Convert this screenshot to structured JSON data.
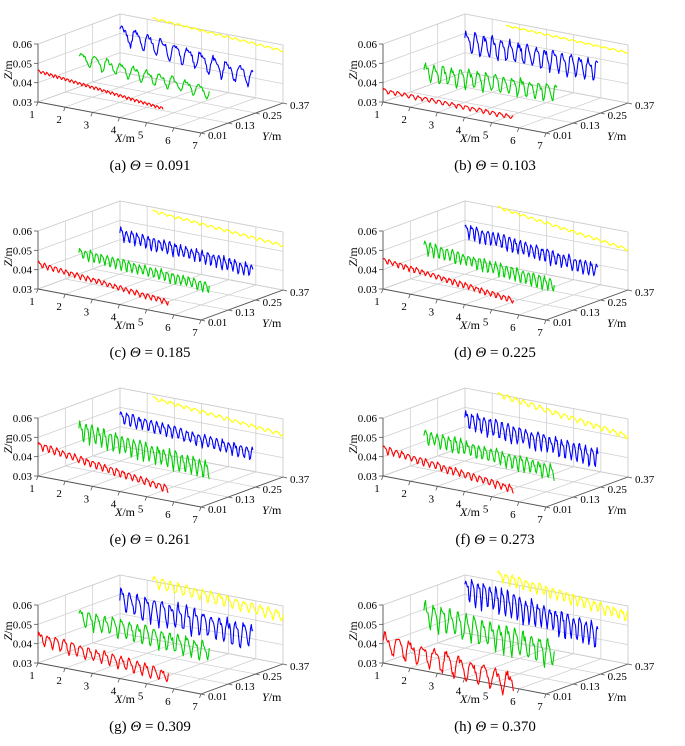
{
  "figure": {
    "series_colors": {
      "y0.01": "#ff0000",
      "y0.13": "#00d000",
      "y0.25": "#0000ff",
      "y0.37": "#ffff00"
    }
  },
  "chart_data": [
    {
      "type": "line3d",
      "panel": "a",
      "caption_prefix": "(a)",
      "theta_symbol": "Θ",
      "eq": "=",
      "theta_value": "0.091",
      "xlabel": "X",
      "ylabel": "Y",
      "zlabel": "Z",
      "unit": "/m",
      "x_ticks": [
        "1",
        "2",
        "3",
        "4",
        "5",
        "6",
        "7"
      ],
      "y_ticks": [
        "0.01",
        "0.13",
        "0.25",
        "0.37"
      ],
      "z_ticks": [
        "0.03",
        "0.04",
        "0.05",
        "0.06"
      ],
      "xlim": [
        1,
        7
      ],
      "ylim": [
        0.01,
        0.37
      ],
      "zlim": [
        0.03,
        0.06
      ],
      "series": [
        {
          "y": 0.01,
          "x_start": 1.0,
          "x_end": 5.6,
          "z_start": 0.046,
          "z_end": 0.039,
          "amplitude": 0.0008,
          "wavelength": 0.15
        },
        {
          "y": 0.13,
          "x_start": 1.5,
          "x_end": 6.3,
          "z_start": 0.049,
          "z_end": 0.044,
          "amplitude": 0.0035,
          "wavelength": 0.48
        },
        {
          "y": 0.25,
          "x_start": 2.0,
          "x_end": 6.9,
          "z_start": 0.058,
          "z_end": 0.048,
          "amplitude": 0.005,
          "wavelength": 0.48
        },
        {
          "y": 0.37,
          "x_start": 2.2,
          "x_end": 7.0,
          "z_start": 0.061,
          "z_end": 0.057,
          "amplitude": 0.0006,
          "wavelength": 0.3
        }
      ]
    },
    {
      "type": "line3d",
      "panel": "b",
      "caption_prefix": "(b)",
      "theta_symbol": "Θ",
      "eq": "=",
      "theta_value": "0.103",
      "xlabel": "X",
      "ylabel": "Y",
      "zlabel": "Z",
      "unit": "/m",
      "x_ticks": [
        "1",
        "2",
        "3",
        "4",
        "5",
        "6",
        "7"
      ],
      "y_ticks": [
        "0.01",
        "0.13",
        "0.25",
        "0.37"
      ],
      "z_ticks": [
        "0.03",
        "0.04",
        "0.05",
        "0.06"
      ],
      "xlim": [
        1,
        7
      ],
      "ylim": [
        0.01,
        0.37
      ],
      "zlim": [
        0.03,
        0.06
      ],
      "series": [
        {
          "y": 0.01,
          "x_start": 1.0,
          "x_end": 5.8,
          "z_start": 0.036,
          "z_end": 0.035,
          "amplitude": 0.0012,
          "wavelength": 0.25
        },
        {
          "y": 0.13,
          "x_start": 1.5,
          "x_end": 6.4,
          "z_start": 0.042,
          "z_end": 0.044,
          "amplitude": 0.005,
          "wavelength": 0.32
        },
        {
          "y": 0.25,
          "x_start": 2.0,
          "x_end": 6.9,
          "z_start": 0.054,
          "z_end": 0.052,
          "amplitude": 0.006,
          "wavelength": 0.32
        },
        {
          "y": 0.37,
          "x_start": 2.5,
          "x_end": 7.0,
          "z_start": 0.058,
          "z_end": 0.056,
          "amplitude": 0.0005,
          "wavelength": 0.3
        }
      ]
    },
    {
      "type": "line3d",
      "panel": "c",
      "caption_prefix": "(c)",
      "theta_symbol": "Θ",
      "eq": "=",
      "theta_value": "0.185",
      "xlabel": "X",
      "ylabel": "Y",
      "zlabel": "Z",
      "unit": "/m",
      "x_ticks": [
        "1",
        "2",
        "3",
        "4",
        "5",
        "6",
        "7"
      ],
      "y_ticks": [
        "0.01",
        "0.13",
        "0.25",
        "0.37"
      ],
      "z_ticks": [
        "0.03",
        "0.04",
        "0.05",
        "0.06"
      ],
      "xlim": [
        1,
        7
      ],
      "ylim": [
        0.01,
        0.37
      ],
      "zlim": [
        0.03,
        0.06
      ],
      "series": [
        {
          "y": 0.01,
          "x_start": 1.0,
          "x_end": 5.8,
          "z_start": 0.043,
          "z_end": 0.036,
          "amplitude": 0.0015,
          "wavelength": 0.2
        },
        {
          "y": 0.13,
          "x_start": 1.5,
          "x_end": 6.3,
          "z_start": 0.045,
          "z_end": 0.04,
          "amplitude": 0.003,
          "wavelength": 0.2
        },
        {
          "y": 0.25,
          "x_start": 2.0,
          "x_end": 6.9,
          "z_start": 0.051,
          "z_end": 0.045,
          "amplitude": 0.0035,
          "wavelength": 0.2
        },
        {
          "y": 0.37,
          "x_start": 2.2,
          "x_end": 7.0,
          "z_start": 0.058,
          "z_end": 0.053,
          "amplitude": 0.0008,
          "wavelength": 0.3
        }
      ]
    },
    {
      "type": "line3d",
      "panel": "d",
      "caption_prefix": "(d)",
      "theta_symbol": "Θ",
      "eq": "=",
      "theta_value": "0.225",
      "xlabel": "X",
      "ylabel": "Y",
      "zlabel": "Z",
      "unit": "/m",
      "x_ticks": [
        "1",
        "2",
        "3",
        "4",
        "5",
        "6",
        "7"
      ],
      "y_ticks": [
        "0.01",
        "0.13",
        "0.25",
        "0.37"
      ],
      "z_ticks": [
        "0.03",
        "0.04",
        "0.05",
        "0.06"
      ],
      "xlim": [
        1,
        7
      ],
      "ylim": [
        0.01,
        0.37
      ],
      "zlim": [
        0.03,
        0.06
      ],
      "series": [
        {
          "y": 0.01,
          "x_start": 1.0,
          "x_end": 5.8,
          "z_start": 0.045,
          "z_end": 0.037,
          "amplitude": 0.0015,
          "wavelength": 0.2
        },
        {
          "y": 0.13,
          "x_start": 1.5,
          "x_end": 6.3,
          "z_start": 0.048,
          "z_end": 0.041,
          "amplitude": 0.0035,
          "wavelength": 0.2
        },
        {
          "y": 0.25,
          "x_start": 2.0,
          "x_end": 6.9,
          "z_start": 0.053,
          "z_end": 0.045,
          "amplitude": 0.004,
          "wavelength": 0.2
        },
        {
          "y": 0.37,
          "x_start": 2.2,
          "x_end": 7.0,
          "z_start": 0.06,
          "z_end": 0.051,
          "amplitude": 0.0008,
          "wavelength": 0.3
        }
      ]
    },
    {
      "type": "line3d",
      "panel": "e",
      "caption_prefix": "(e)",
      "theta_symbol": "Θ",
      "eq": "=",
      "theta_value": "0.261",
      "xlabel": "X",
      "ylabel": "Y",
      "zlabel": "Z",
      "unit": "/m",
      "x_ticks": [
        "1",
        "2",
        "3",
        "4",
        "5",
        "6",
        "7"
      ],
      "y_ticks": [
        "0.01",
        "0.13",
        "0.25",
        "0.37"
      ],
      "z_ticks": [
        "0.03",
        "0.04",
        "0.05",
        "0.06"
      ],
      "xlim": [
        1,
        7
      ],
      "ylim": [
        0.01,
        0.37
      ],
      "zlim": [
        0.03,
        0.06
      ],
      "series": [
        {
          "y": 0.01,
          "x_start": 1.0,
          "x_end": 5.8,
          "z_start": 0.046,
          "z_end": 0.036,
          "amplitude": 0.002,
          "wavelength": 0.22
        },
        {
          "y": 0.13,
          "x_start": 1.5,
          "x_end": 6.3,
          "z_start": 0.05,
          "z_end": 0.042,
          "amplitude": 0.005,
          "wavelength": 0.22
        },
        {
          "y": 0.25,
          "x_start": 2.0,
          "x_end": 6.9,
          "z_start": 0.053,
          "z_end": 0.047,
          "amplitude": 0.0035,
          "wavelength": 0.22
        },
        {
          "y": 0.37,
          "x_start": 2.2,
          "x_end": 7.0,
          "z_start": 0.058,
          "z_end": 0.052,
          "amplitude": 0.001,
          "wavelength": 0.3
        }
      ]
    },
    {
      "type": "line3d",
      "panel": "f",
      "caption_prefix": "(f)",
      "theta_symbol": "Θ",
      "eq": "=",
      "theta_value": "0.273",
      "xlabel": "X",
      "ylabel": "Y",
      "zlabel": "Z",
      "unit": "/m",
      "x_ticks": [
        "1",
        "2",
        "3",
        "4",
        "5",
        "6",
        "7"
      ],
      "y_ticks": [
        "0.01",
        "0.13",
        "0.25",
        "0.37"
      ],
      "z_ticks": [
        "0.03",
        "0.04",
        "0.05",
        "0.06"
      ],
      "xlim": [
        1,
        7
      ],
      "ylim": [
        0.01,
        0.37
      ],
      "zlim": [
        0.03,
        0.06
      ],
      "series": [
        {
          "y": 0.01,
          "x_start": 1.0,
          "x_end": 5.8,
          "z_start": 0.044,
          "z_end": 0.036,
          "amplitude": 0.002,
          "wavelength": 0.22
        },
        {
          "y": 0.13,
          "x_start": 1.5,
          "x_end": 6.3,
          "z_start": 0.047,
          "z_end": 0.041,
          "amplitude": 0.004,
          "wavelength": 0.22
        },
        {
          "y": 0.25,
          "x_start": 2.0,
          "x_end": 6.9,
          "z_start": 0.052,
          "z_end": 0.045,
          "amplitude": 0.005,
          "wavelength": 0.22
        },
        {
          "y": 0.37,
          "x_start": 2.2,
          "x_end": 7.0,
          "z_start": 0.06,
          "z_end": 0.051,
          "amplitude": 0.0015,
          "wavelength": 0.3
        }
      ]
    },
    {
      "type": "line3d",
      "panel": "g",
      "caption_prefix": "(g)",
      "theta_symbol": "Θ",
      "eq": "=",
      "theta_value": "0.309",
      "xlabel": "X",
      "ylabel": "Y",
      "zlabel": "Z",
      "unit": "/m",
      "x_ticks": [
        "1",
        "2",
        "3",
        "4",
        "5",
        "6",
        "7"
      ],
      "y_ticks": [
        "0.01",
        "0.13",
        "0.25",
        "0.37"
      ],
      "z_ticks": [
        "0.03",
        "0.04",
        "0.05",
        "0.06"
      ],
      "xlim": [
        1,
        7
      ],
      "ylim": [
        0.01,
        0.37
      ],
      "zlim": [
        0.03,
        0.06
      ],
      "series": [
        {
          "y": 0.01,
          "x_start": 1.0,
          "x_end": 5.8,
          "z_start": 0.043,
          "z_end": 0.036,
          "amplitude": 0.0035,
          "wavelength": 0.3
        },
        {
          "y": 0.13,
          "x_start": 1.5,
          "x_end": 6.3,
          "z_start": 0.05,
          "z_end": 0.045,
          "amplitude": 0.005,
          "wavelength": 0.3
        },
        {
          "y": 0.25,
          "x_start": 2.0,
          "x_end": 6.9,
          "z_start": 0.055,
          "z_end": 0.049,
          "amplitude": 0.007,
          "wavelength": 0.3
        },
        {
          "y": 0.37,
          "x_start": 2.2,
          "x_end": 7.0,
          "z_start": 0.06,
          "z_end": 0.055,
          "amplitude": 0.003,
          "wavelength": 0.3
        }
      ]
    },
    {
      "type": "line3d",
      "panel": "h",
      "caption_prefix": "(h)",
      "theta_symbol": "Θ",
      "eq": "=",
      "theta_value": "0.370",
      "xlabel": "X",
      "ylabel": "Y",
      "zlabel": "Z",
      "unit": "/m",
      "x_ticks": [
        "1",
        "2",
        "3",
        "4",
        "5",
        "6",
        "7"
      ],
      "y_ticks": [
        "0.01",
        "0.13",
        "0.25",
        "0.37"
      ],
      "z_ticks": [
        "0.03",
        "0.04",
        "0.05",
        "0.06"
      ],
      "xlim": [
        1,
        7
      ],
      "ylim": [
        0.01,
        0.37
      ],
      "zlim": [
        0.03,
        0.06
      ],
      "series": [
        {
          "y": 0.01,
          "x_start": 1.0,
          "x_end": 5.8,
          "z_start": 0.041,
          "z_end": 0.032,
          "amplitude": 0.006,
          "wavelength": 0.45
        },
        {
          "y": 0.13,
          "x_start": 1.5,
          "x_end": 6.3,
          "z_start": 0.052,
          "z_end": 0.044,
          "amplitude": 0.007,
          "wavelength": 0.3
        },
        {
          "y": 0.25,
          "x_start": 2.0,
          "x_end": 6.9,
          "z_start": 0.061,
          "z_end": 0.05,
          "amplitude": 0.007,
          "wavelength": 0.22
        },
        {
          "y": 0.37,
          "x_start": 2.2,
          "x_end": 7.0,
          "z_start": 0.063,
          "z_end": 0.055,
          "amplitude": 0.003,
          "wavelength": 0.25
        }
      ]
    }
  ]
}
